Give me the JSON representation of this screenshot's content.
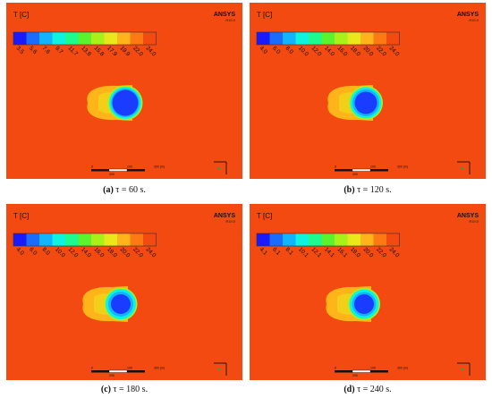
{
  "colors": {
    "background": "#f24a10",
    "legend": [
      "#1a1aff",
      "#1a6cff",
      "#13b4ff",
      "#0ef2e0",
      "#1dfa8e",
      "#5cf22d",
      "#a8f21a",
      "#e8e81a",
      "#ffb41a",
      "#ff7a12",
      "#f24a10"
    ]
  },
  "legend_title": "T [C]",
  "logo_text": "ANSYS",
  "logo_version": "R19.0",
  "panels": [
    {
      "id": "a",
      "caption_label": "(a)",
      "caption_text": "τ = 60 s.",
      "ticks": [
        "3.5",
        "5.6",
        "7.6",
        "9.7",
        "11.7",
        "13.8",
        "15.8",
        "17.9",
        "19.9",
        "22.0",
        "24.0"
      ],
      "scale_labels": [
        "0",
        "100",
        "200",
        "300 (m)"
      ]
    },
    {
      "id": "b",
      "caption_label": "(b)",
      "caption_text": "τ = 120 s.",
      "ticks": [
        "4.0",
        "6.0",
        "8.0",
        "10.0",
        "12.0",
        "14.0",
        "16.0",
        "18.0",
        "20.0",
        "22.0",
        "24.0"
      ],
      "scale_labels": [
        "0",
        "100",
        "200",
        "300 (m)"
      ]
    },
    {
      "id": "c",
      "caption_label": "(c)",
      "caption_text": "τ = 180 s.",
      "ticks": [
        "4.0",
        "6.0",
        "8.0",
        "10.0",
        "12.0",
        "14.0",
        "16.0",
        "18.0",
        "20.0",
        "22.0",
        "24.0"
      ],
      "scale_labels": [
        "0",
        "100",
        "200",
        "300 (m)"
      ]
    },
    {
      "id": "d",
      "caption_label": "(d)",
      "caption_text": "τ = 240 s.",
      "ticks": [
        "4.1",
        "6.1",
        "8.1",
        "10.1",
        "12.1",
        "14.1",
        "16.1",
        "18.0",
        "20.0",
        "22.0",
        "24.0"
      ],
      "scale_labels": [
        "0",
        "100",
        "200",
        "300 (m)"
      ]
    }
  ]
}
